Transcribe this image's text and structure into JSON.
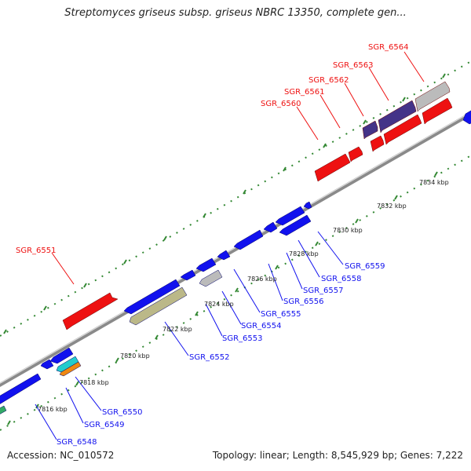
{
  "title": "Streptomyces griseus subsp. griseus NBRC 13350, complete gen...",
  "footer": {
    "accession": "Accession: NC_010572",
    "stats": "Topology: linear; Length: 8,545,929 bp; Genes: 7,222"
  },
  "colors": {
    "forward_red": "#ee1111",
    "reverse_blue": "#1111ee",
    "gray": "#bbbbbb",
    "navy": "#443388",
    "olive": "#bbb888",
    "cyan": "#22cccc",
    "orange": "#ee8811",
    "backbone": "#8a8a8a",
    "tick": "#338833"
  },
  "ticks": [
    {
      "label": "7816 kbp"
    },
    {
      "label": "7818 kbp"
    },
    {
      "label": "7820 kbp"
    },
    {
      "label": "7822 kbp"
    },
    {
      "label": "7824 kbp"
    },
    {
      "label": "7826 kbp"
    },
    {
      "label": "7828 kbp"
    },
    {
      "label": "7830 kbp"
    },
    {
      "label": "7832 kbp"
    },
    {
      "label": "7834 kbp"
    }
  ],
  "gene_labels": [
    {
      "text": "SGR_6564",
      "strand": "forward"
    },
    {
      "text": "SGR_6563",
      "strand": "forward"
    },
    {
      "text": "SGR_6562",
      "strand": "forward"
    },
    {
      "text": "SGR_6561",
      "strand": "forward"
    },
    {
      "text": "SGR_6560",
      "strand": "forward"
    },
    {
      "text": "SGR_6551",
      "strand": "forward"
    },
    {
      "text": "SGR_6559",
      "strand": "reverse"
    },
    {
      "text": "SGR_6558",
      "strand": "reverse"
    },
    {
      "text": "SGR_6557",
      "strand": "reverse"
    },
    {
      "text": "SGR_6556",
      "strand": "reverse"
    },
    {
      "text": "SGR_6555",
      "strand": "reverse"
    },
    {
      "text": "SGR_6554",
      "strand": "reverse"
    },
    {
      "text": "SGR_6553",
      "strand": "reverse"
    },
    {
      "text": "SGR_6552",
      "strand": "reverse"
    },
    {
      "text": "SGR_6550",
      "strand": "reverse"
    },
    {
      "text": "SGR_6549",
      "strand": "reverse"
    },
    {
      "text": "SGR_6548",
      "strand": "reverse"
    }
  ]
}
